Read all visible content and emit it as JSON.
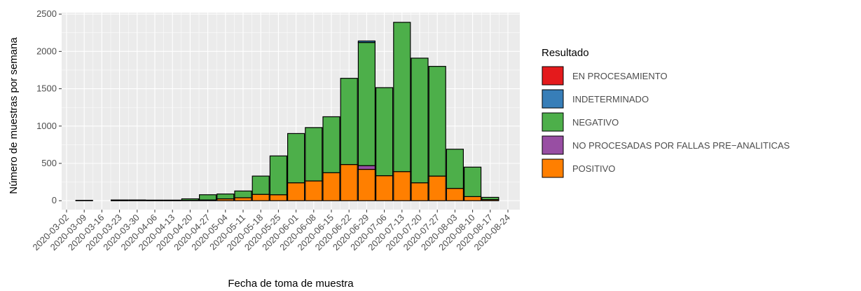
{
  "chart_data": {
    "type": "bar",
    "stacked": true,
    "x_label": "Fecha de toma de muestra",
    "y_label": "Número de muestras por semana",
    "legend_title": "Resultado",
    "categories": [
      "2020-03-02",
      "2020-03-09",
      "2020-03-16",
      "2020-03-23",
      "2020-03-30",
      "2020-04-06",
      "2020-04-13",
      "2020-04-20",
      "2020-04-27",
      "2020-05-04",
      "2020-05-11",
      "2020-05-18",
      "2020-05-25",
      "2020-06-01",
      "2020-06-08",
      "2020-06-15",
      "2020-06-22",
      "2020-06-29",
      "2020-07-06",
      "2020-07-13",
      "2020-07-20",
      "2020-07-27",
      "2020-08-03",
      "2020-08-10",
      "2020-08-17",
      "2020-08-24"
    ],
    "series": [
      {
        "name": "EN PROCESAMIENTO",
        "color": "#E41A1C",
        "values": [
          null,
          0,
          null,
          0,
          0,
          0,
          0,
          0,
          0,
          0,
          0,
          0,
          0,
          0,
          0,
          0,
          0,
          0,
          0,
          0,
          0,
          0,
          0,
          0,
          0,
          null
        ]
      },
      {
        "name": "INDETERMINADO",
        "color": "#377EB8",
        "values": [
          null,
          0,
          null,
          0,
          0,
          0,
          0,
          0,
          0,
          0,
          0,
          0,
          0,
          0,
          0,
          0,
          0,
          20,
          0,
          0,
          0,
          0,
          0,
          0,
          0,
          null
        ]
      },
      {
        "name": "NEGATIVO",
        "color": "#4DAF4A",
        "values": [
          null,
          5,
          null,
          8,
          7,
          6,
          6,
          20,
          70,
          65,
          90,
          245,
          520,
          660,
          715,
          750,
          1155,
          1650,
          1180,
          2000,
          1670,
          1470,
          525,
          395,
          30,
          null
        ]
      },
      {
        "name": "NO PROCESADAS POR FALLAS PRE−ANALITICAS",
        "color": "#984EA3",
        "values": [
          null,
          0,
          null,
          0,
          0,
          0,
          0,
          0,
          0,
          0,
          0,
          0,
          0,
          0,
          0,
          0,
          0,
          50,
          0,
          0,
          0,
          0,
          0,
          0,
          0,
          null
        ]
      },
      {
        "name": "POSITIVO",
        "color": "#FF7F00",
        "values": [
          null,
          0,
          null,
          2,
          3,
          2,
          2,
          5,
          10,
          25,
          40,
          85,
          80,
          240,
          265,
          375,
          485,
          420,
          335,
          390,
          240,
          330,
          165,
          55,
          15,
          null
        ]
      }
    ],
    "ylim": [
      -120,
      2520
    ],
    "yticks": [
      0,
      500,
      1000,
      1500,
      2000,
      2500
    ],
    "grid": true
  }
}
